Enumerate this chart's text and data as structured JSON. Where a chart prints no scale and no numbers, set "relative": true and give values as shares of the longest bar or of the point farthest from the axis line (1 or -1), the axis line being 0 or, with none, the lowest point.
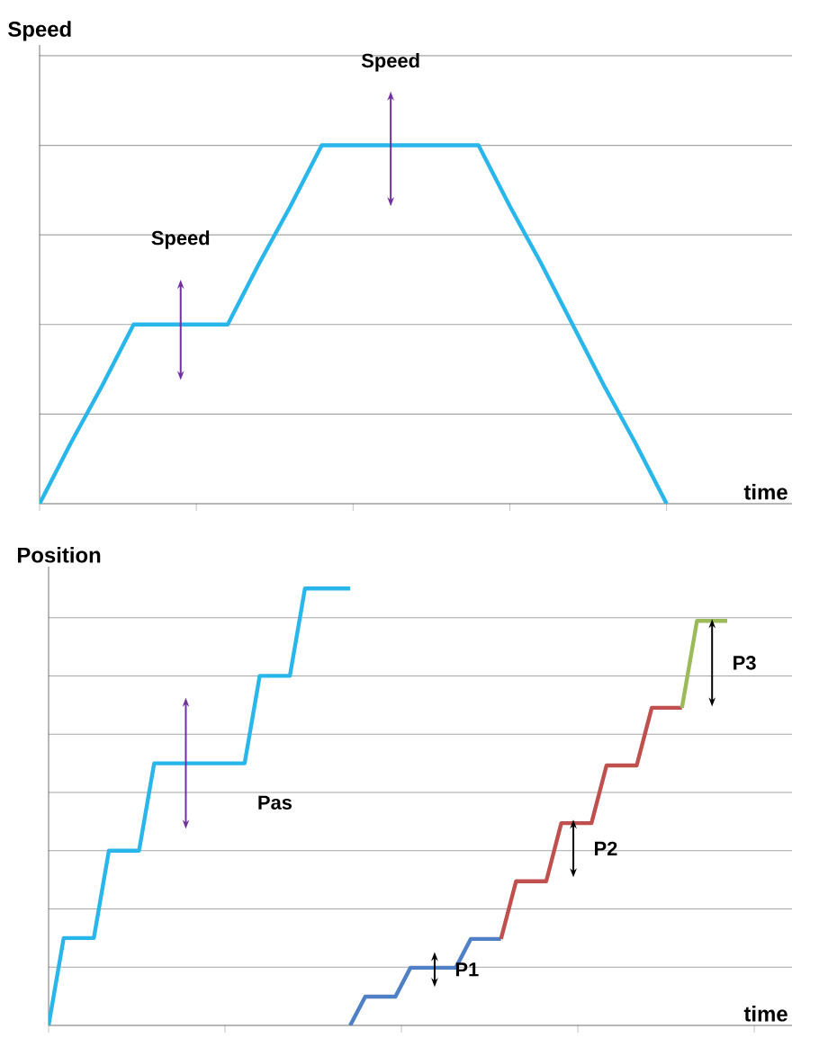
{
  "chart_data": [
    {
      "type": "line",
      "ylabel": "Speed",
      "xlabel": "time",
      "relative": true,
      "grid": "y",
      "marker": "none",
      "line_style": "solid",
      "categories": [
        null,
        null,
        null,
        null,
        null,
        null,
        null,
        null,
        null,
        null,
        null,
        null,
        null,
        null,
        null,
        null,
        null,
        null,
        null,
        null,
        null
      ],
      "series": [
        {
          "color": "#29b6ea",
          "values": [
            0,
            0.17,
            0.33,
            0.5,
            0.5,
            0.5,
            0.5,
            0.67,
            0.83,
            1,
            1,
            1,
            1,
            1,
            1,
            0.83,
            0.67,
            0.5,
            0.33,
            0.17,
            0
          ]
        }
      ],
      "annotations": [
        "Speed",
        "Speed"
      ]
    },
    {
      "type": "line",
      "ylabel": "Position",
      "xlabel": "time",
      "relative": true,
      "grid": "y",
      "marker": "none",
      "line_style": "solid",
      "categories": [
        null,
        null,
        null,
        null,
        null,
        null,
        null,
        null,
        null,
        null,
        null,
        null,
        null,
        null,
        null,
        null,
        null,
        null,
        null,
        null,
        null,
        null,
        null,
        null,
        null,
        null,
        null,
        null,
        null,
        null,
        null,
        null,
        null,
        null,
        null,
        null,
        null,
        null,
        null,
        null,
        null,
        null,
        null,
        null,
        null,
        null
      ],
      "series": [
        {
          "color": "#29b6ea",
          "values": [
            0,
            0.2,
            0.2,
            0.2,
            0.4,
            0.4,
            0.4,
            0.6,
            0.6,
            0.6,
            0.6,
            0.6,
            0.6,
            0.6,
            0.8,
            0.8,
            0.8,
            1,
            1,
            1,
            1,
            null,
            null,
            null,
            null,
            null,
            null,
            null,
            null,
            null,
            null,
            null,
            null,
            null,
            null,
            null,
            null,
            null,
            null,
            null,
            null,
            null,
            null,
            null,
            null,
            null
          ]
        },
        {
          "color": "#4f7fc4",
          "values": [
            null,
            null,
            null,
            null,
            null,
            null,
            null,
            null,
            null,
            null,
            null,
            null,
            null,
            null,
            null,
            null,
            null,
            null,
            null,
            null,
            0,
            0.066,
            0.066,
            0.066,
            0.132,
            0.132,
            0.132,
            0.132,
            0.198,
            0.198,
            0.198,
            null,
            null,
            null,
            null,
            null,
            null,
            null,
            null,
            null,
            null,
            null,
            null,
            null,
            null,
            null
          ]
        },
        {
          "color": "#c0504d",
          "values": [
            null,
            null,
            null,
            null,
            null,
            null,
            null,
            null,
            null,
            null,
            null,
            null,
            null,
            null,
            null,
            null,
            null,
            null,
            null,
            null,
            null,
            null,
            null,
            null,
            null,
            null,
            null,
            null,
            null,
            null,
            0.198,
            0.33,
            0.33,
            0.33,
            0.463,
            0.463,
            0.463,
            0.595,
            0.595,
            0.595,
            0.727,
            0.727,
            0.727,
            null,
            null,
            null
          ]
        },
        {
          "color": "#9bbb59",
          "values": [
            null,
            null,
            null,
            null,
            null,
            null,
            null,
            null,
            null,
            null,
            null,
            null,
            null,
            null,
            null,
            null,
            null,
            null,
            null,
            null,
            null,
            null,
            null,
            null,
            null,
            null,
            null,
            null,
            null,
            null,
            null,
            null,
            null,
            null,
            null,
            null,
            null,
            null,
            null,
            null,
            null,
            null,
            0.727,
            0.926,
            0.926,
            0.926
          ]
        }
      ],
      "annotations": [
        "Pas",
        "P1",
        "P2",
        "P3"
      ]
    }
  ]
}
